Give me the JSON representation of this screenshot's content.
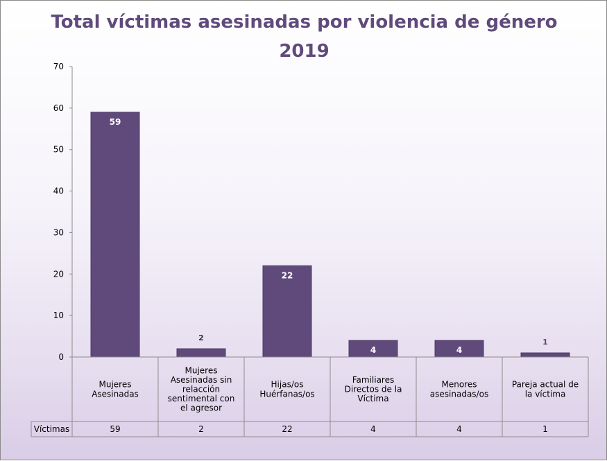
{
  "chart_data": {
    "type": "bar",
    "title": "Total víctimas asesinadas por violencia de género",
    "subtitle": "2019",
    "categories": [
      "Mujeres Asesinadas",
      "Mujeres Asesinadas sin relacción sentimental con el agresor",
      "Hijas/os Huérfanas/os",
      "Familiares Directos de la Víctima",
      "Menores asesinadas/os",
      "Pareja actual de la víctima"
    ],
    "category_lines": [
      [
        "Mujeres",
        "Asesinadas"
      ],
      [
        "Mujeres",
        "Asesinadas sin",
        "relacción",
        "sentimental con",
        "el agresor"
      ],
      [
        "Hijas/os",
        "Huérfanas/os"
      ],
      [
        "Familiares",
        "Directos de la",
        "Víctima"
      ],
      [
        "Menores",
        "asesinadas/os"
      ],
      [
        "Pareja actual de",
        "la víctima"
      ]
    ],
    "series": [
      {
        "name": "Víctimas",
        "values": [
          59,
          2,
          22,
          4,
          4,
          1
        ]
      }
    ],
    "ylim": [
      0,
      70
    ],
    "yticks": [
      0,
      10,
      20,
      30,
      40,
      50,
      60,
      70
    ],
    "xlabel": "",
    "ylabel": "",
    "bar_color": "#604a7b",
    "title_color": "#604a7b",
    "data_table": true
  }
}
